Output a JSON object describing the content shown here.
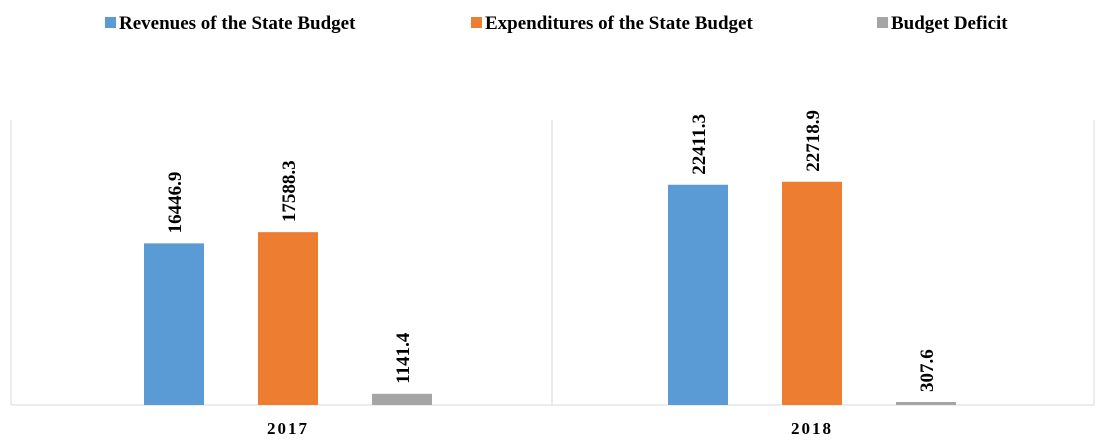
{
  "chart_data": {
    "type": "bar",
    "title": "",
    "xlabel": "",
    "ylabel": "",
    "categories": [
      "2017",
      "2018"
    ],
    "series": [
      {
        "name": "Revenues of the State Budget",
        "color": "#5b9bd5",
        "values": [
          16446.9,
          22411.3
        ],
        "labels": [
          "16446.9",
          "22411.3"
        ]
      },
      {
        "name": "Expenditures of the State Budget",
        "color": "#ed7d31",
        "values": [
          17588.3,
          22718.9
        ],
        "labels": [
          "17588.3",
          "22718.9"
        ]
      },
      {
        "name": "Budget Deficit",
        "color": "#a5a5a5",
        "values": [
          1141.4,
          307.6
        ],
        "labels": [
          "1141.4",
          "307.6"
        ]
      }
    ],
    "ylim": [
      0,
      29000
    ],
    "grid": false,
    "legend_position": "top",
    "axis_color": "#d9d9d9"
  }
}
